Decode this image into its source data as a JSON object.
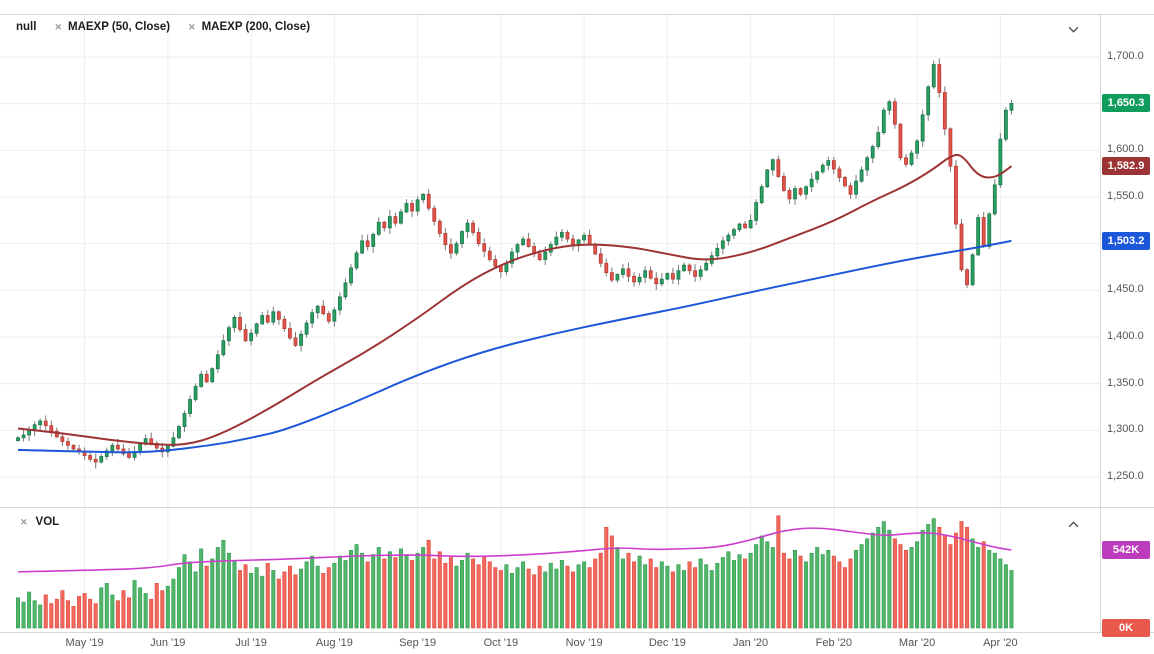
{
  "header": {
    "series_label": "null",
    "indicators": [
      {
        "label": "MAEXP (50, Close)"
      },
      {
        "label": "MAEXP (200, Close)"
      }
    ]
  },
  "icons": {
    "close": "✕"
  },
  "volume_panel": {
    "label": "VOL"
  },
  "price_labels": {
    "last": {
      "text": "1,650.3",
      "color": "#109c5d"
    },
    "ma50": {
      "text": "1,582.9",
      "color": "#9c3334"
    },
    "ma200": {
      "text": "1,503.2",
      "color": "#1c57d9"
    },
    "vol_ma": {
      "text": "542K",
      "color": "#bb3dbb"
    },
    "vol_zero": {
      "text": "0K",
      "color": "#e8584c"
    }
  },
  "colors": {
    "candle_up": "#2b9e62",
    "candle_up_stroke": "#17794b",
    "candle_down": "#e0544b",
    "candle_down_stroke": "#b83b33",
    "wick": "#7a7a7a",
    "vol_up": "#52b56a",
    "vol_up_stroke": "#2d9e51",
    "vol_down": "#f0685c",
    "vol_down_stroke": "#e04a3f",
    "grid": "#ededed",
    "separator": "#d8d8d8",
    "axis_text": "#555555"
  },
  "chart_data": {
    "type": "candlestick+volume",
    "price_axis": {
      "min": 1250,
      "max": 1700,
      "step": 50,
      "tick_labels": [
        "1,250.0",
        "1,300.0",
        "1,350.0",
        "1,400.0",
        "1,450.0",
        "1,500.0",
        "1,550.0",
        "1,600.0",
        "1,650.0",
        "1,700.0"
      ]
    },
    "x_ticks": {
      "labels": [
        "May '19",
        "Jun '19",
        "Jul '19",
        "Aug '19",
        "Sep '19",
        "Oct '19",
        "Nov '19",
        "Dec '19",
        "Jan '20",
        "Feb '20",
        "Mar '20",
        "Apr '20"
      ],
      "candle_indices": [
        12,
        27,
        42,
        57,
        72,
        87,
        102,
        117,
        132,
        147,
        162,
        177
      ]
    },
    "candles": {
      "first_open": 1289,
      "closes": [
        1292,
        1295,
        1300,
        1306,
        1310,
        1305,
        1299,
        1293,
        1288,
        1284,
        1280,
        1277,
        1273,
        1269,
        1266,
        1272,
        1278,
        1284,
        1280,
        1275,
        1271,
        1277,
        1285,
        1291,
        1286,
        1281,
        1277,
        1283,
        1292,
        1304,
        1318,
        1333,
        1347,
        1360,
        1352,
        1366,
        1381,
        1396,
        1410,
        1421,
        1408,
        1396,
        1404,
        1414,
        1423,
        1416,
        1427,
        1419,
        1409,
        1399,
        1391,
        1403,
        1415,
        1426,
        1433,
        1425,
        1417,
        1429,
        1443,
        1458,
        1474,
        1490,
        1503,
        1497,
        1510,
        1523,
        1517,
        1529,
        1522,
        1534,
        1543,
        1535,
        1547,
        1553,
        1538,
        1524,
        1511,
        1499,
        1490,
        1500,
        1513,
        1522,
        1512,
        1500,
        1492,
        1483,
        1476,
        1470,
        1479,
        1491,
        1499,
        1505,
        1497,
        1489,
        1483,
        1491,
        1499,
        1507,
        1512,
        1505,
        1498,
        1504,
        1509,
        1499,
        1489,
        1479,
        1469,
        1461,
        1467,
        1473,
        1465,
        1459,
        1464,
        1471,
        1463,
        1457,
        1462,
        1468,
        1462,
        1471,
        1477,
        1471,
        1465,
        1472,
        1479,
        1487,
        1495,
        1503,
        1509,
        1515,
        1521,
        1517,
        1525,
        1544,
        1561,
        1579,
        1590,
        1572,
        1557,
        1548,
        1559,
        1553,
        1561,
        1569,
        1577,
        1584,
        1589,
        1580,
        1571,
        1562,
        1553,
        1567,
        1579,
        1592,
        1604,
        1619,
        1643,
        1652,
        1628,
        1592,
        1585,
        1597,
        1610,
        1638,
        1668,
        1692,
        1662,
        1623,
        1583,
        1521,
        1472,
        1456,
        1488,
        1528,
        1497,
        1532,
        1563,
        1612,
        1643,
        1650.3
      ]
    },
    "volumes_k": [
      210,
      180,
      250,
      190,
      160,
      230,
      170,
      200,
      260,
      190,
      150,
      220,
      240,
      200,
      170,
      280,
      310,
      230,
      190,
      260,
      210,
      330,
      280,
      240,
      200,
      310,
      260,
      290,
      340,
      420,
      510,
      460,
      390,
      550,
      430,
      480,
      560,
      610,
      520,
      470,
      400,
      440,
      380,
      420,
      360,
      450,
      400,
      340,
      390,
      430,
      370,
      410,
      460,
      500,
      430,
      380,
      420,
      450,
      500,
      470,
      540,
      580,
      520,
      460,
      510,
      560,
      480,
      530,
      490,
      550,
      510,
      470,
      520,
      560,
      610,
      480,
      530,
      450,
      490,
      430,
      470,
      520,
      480,
      440,
      500,
      460,
      420,
      400,
      440,
      380,
      420,
      460,
      410,
      370,
      430,
      390,
      450,
      410,
      470,
      430,
      390,
      440,
      460,
      420,
      480,
      520,
      700,
      640,
      560,
      480,
      520,
      460,
      500,
      440,
      480,
      420,
      460,
      430,
      390,
      440,
      400,
      460,
      420,
      480,
      440,
      400,
      450,
      490,
      530,
      470,
      510,
      480,
      520,
      580,
      640,
      600,
      560,
      780,
      520,
      480,
      540,
      500,
      460,
      520,
      560,
      510,
      540,
      500,
      460,
      420,
      480,
      540,
      580,
      620,
      660,
      700,
      740,
      680,
      620,
      580,
      540,
      560,
      600,
      680,
      720,
      760,
      700,
      640,
      580,
      660,
      740,
      700,
      620,
      560,
      600,
      540,
      520,
      480,
      440,
      400
    ],
    "overlays": {
      "ma50": {
        "color": "#9c3334",
        "points": [
          [
            0,
            1302
          ],
          [
            8,
            1297
          ],
          [
            16,
            1290
          ],
          [
            24,
            1285
          ],
          [
            30,
            1284
          ],
          [
            36,
            1294
          ],
          [
            45,
            1322
          ],
          [
            54,
            1355
          ],
          [
            63,
            1385
          ],
          [
            72,
            1420
          ],
          [
            80,
            1455
          ],
          [
            87,
            1478
          ],
          [
            95,
            1494
          ],
          [
            102,
            1500
          ],
          [
            110,
            1497
          ],
          [
            117,
            1489
          ],
          [
            124,
            1481
          ],
          [
            132,
            1490
          ],
          [
            139,
            1506
          ],
          [
            147,
            1524
          ],
          [
            154,
            1546
          ],
          [
            160,
            1562
          ],
          [
            165,
            1580
          ],
          [
            168,
            1594
          ],
          [
            170,
            1596
          ],
          [
            173,
            1572
          ],
          [
            176,
            1570
          ],
          [
            179,
            1583
          ]
        ]
      },
      "ma200": {
        "color": "#1c57d9",
        "points": [
          [
            0,
            1279
          ],
          [
            12,
            1277
          ],
          [
            24,
            1276
          ],
          [
            36,
            1285
          ],
          [
            42,
            1292
          ],
          [
            48,
            1300
          ],
          [
            60,
            1328
          ],
          [
            72,
            1360
          ],
          [
            84,
            1385
          ],
          [
            96,
            1403
          ],
          [
            108,
            1418
          ],
          [
            120,
            1432
          ],
          [
            132,
            1448
          ],
          [
            144,
            1463
          ],
          [
            156,
            1478
          ],
          [
            165,
            1488
          ],
          [
            172,
            1495
          ],
          [
            179,
            1503
          ]
        ]
      },
      "vol_ma": {
        "color": "#cc3fcc",
        "points": [
          [
            0,
            390
          ],
          [
            12,
            400
          ],
          [
            24,
            415
          ],
          [
            30,
            455
          ],
          [
            40,
            470
          ],
          [
            50,
            480
          ],
          [
            60,
            500
          ],
          [
            72,
            510
          ],
          [
            80,
            495
          ],
          [
            90,
            505
          ],
          [
            100,
            530
          ],
          [
            108,
            560
          ],
          [
            114,
            545
          ],
          [
            120,
            550
          ],
          [
            126,
            560
          ],
          [
            132,
            610
          ],
          [
            138,
            680
          ],
          [
            144,
            700
          ],
          [
            150,
            670
          ],
          [
            156,
            640
          ],
          [
            160,
            655
          ],
          [
            164,
            665
          ],
          [
            168,
            640
          ],
          [
            172,
            600
          ],
          [
            176,
            560
          ],
          [
            179,
            542
          ]
        ]
      }
    },
    "last_values": {
      "close": 1650.3,
      "ma50": 1582.9,
      "ma200": 1503.2,
      "vol_ma_k": 542
    }
  }
}
